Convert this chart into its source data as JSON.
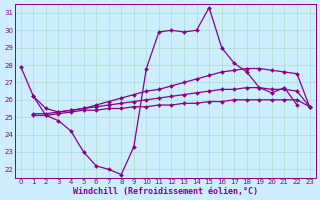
{
  "xlabel": "Windchill (Refroidissement éolien,°C)",
  "bg_color": "#cceeff",
  "line_color": "#880088",
  "grid_color": "#aaddcc",
  "x_ticks": [
    0,
    1,
    2,
    3,
    4,
    5,
    6,
    7,
    8,
    9,
    10,
    11,
    12,
    13,
    14,
    15,
    16,
    17,
    18,
    19,
    20,
    21,
    22,
    23
  ],
  "y_ticks": [
    22,
    23,
    24,
    25,
    26,
    27,
    28,
    29,
    30,
    31
  ],
  "ylim": [
    21.5,
    31.5
  ],
  "xlim": [
    -0.5,
    23.5
  ],
  "series": [
    {
      "x": [
        0,
        1,
        2,
        3,
        4,
        5,
        6,
        7,
        8,
        9,
        10,
        11,
        12,
        13,
        14,
        15,
        16,
        17,
        18,
        19,
        20,
        21,
        22
      ],
      "y": [
        27.9,
        26.2,
        25.1,
        24.8,
        24.2,
        23.0,
        22.2,
        22.0,
        21.7,
        23.3,
        27.8,
        29.9,
        30.0,
        29.9,
        30.0,
        31.3,
        29.0,
        28.1,
        27.6,
        26.7,
        26.4,
        26.7,
        25.7
      ]
    },
    {
      "x": [
        1,
        2,
        3,
        4,
        5,
        6,
        7,
        8,
        9,
        10,
        11,
        12,
        13,
        14,
        15,
        16,
        17,
        18,
        19,
        20,
        21,
        22,
        23
      ],
      "y": [
        26.2,
        25.5,
        25.3,
        25.4,
        25.5,
        25.7,
        25.9,
        26.1,
        26.3,
        26.5,
        26.6,
        26.8,
        27.0,
        27.2,
        27.4,
        27.6,
        27.7,
        27.8,
        27.8,
        27.7,
        27.6,
        27.5,
        25.6
      ]
    },
    {
      "x": [
        1,
        2,
        3,
        4,
        5,
        6,
        7,
        8,
        9,
        10,
        11,
        12,
        13,
        14,
        15,
        16,
        17,
        18,
        19,
        20,
        21,
        22,
        23
      ],
      "y": [
        25.2,
        25.2,
        25.3,
        25.4,
        25.5,
        25.6,
        25.7,
        25.8,
        25.9,
        26.0,
        26.1,
        26.2,
        26.3,
        26.4,
        26.5,
        26.6,
        26.6,
        26.7,
        26.7,
        26.6,
        26.6,
        26.5,
        25.6
      ]
    },
    {
      "x": [
        1,
        2,
        3,
        4,
        5,
        6,
        7,
        8,
        9,
        10,
        11,
        12,
        13,
        14,
        15,
        16,
        17,
        18,
        19,
        20,
        21,
        22,
        23
      ],
      "y": [
        25.1,
        25.1,
        25.2,
        25.3,
        25.4,
        25.4,
        25.5,
        25.5,
        25.6,
        25.6,
        25.7,
        25.7,
        25.8,
        25.8,
        25.9,
        25.9,
        26.0,
        26.0,
        26.0,
        26.0,
        26.0,
        26.0,
        25.6
      ]
    }
  ],
  "marker": "D",
  "markersize": 2.0,
  "linewidth": 0.9,
  "tick_fontsize": 5.0,
  "xlabel_fontsize": 6.0
}
